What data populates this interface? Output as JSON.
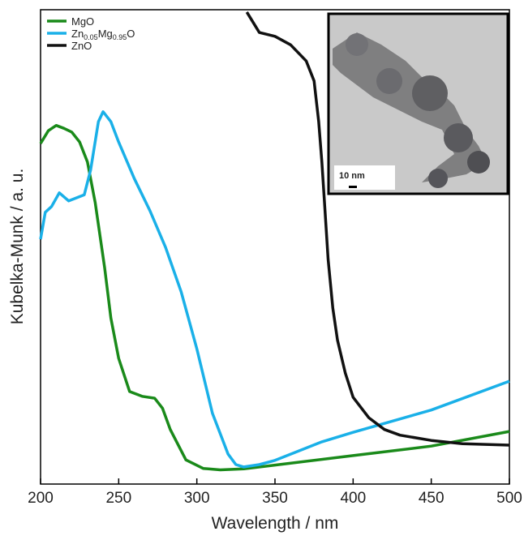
{
  "chart_data": {
    "type": "line",
    "x_label": "Wavelength / nm",
    "y_label": "Kubelka-Munk / a. u.",
    "xlim": [
      200,
      500
    ],
    "ylim": [
      0,
      100
    ],
    "xticks": [
      200,
      250,
      300,
      350,
      400,
      450,
      500
    ],
    "legend": "top-left",
    "series": [
      {
        "name": "MgO",
        "color": "#1a8a1a",
        "x": [
          200,
          205,
          210,
          215,
          220,
          225,
          230,
          235,
          241,
          245,
          250,
          257,
          265,
          273,
          278,
          283,
          293,
          304,
          315,
          330,
          350,
          400,
          450,
          500
        ],
        "values": [
          71.8,
          74.5,
          75.6,
          75.0,
          74.2,
          72.1,
          67.9,
          59.3,
          45.6,
          35.0,
          26.5,
          19.5,
          18.5,
          18.1,
          16.0,
          11.5,
          5.1,
          3.3,
          3.0,
          3.2,
          4.0,
          6.0,
          8.0,
          11.1
        ]
      },
      {
        "name": "Zn0.05Mg0.95O",
        "color": "#1ab0e8",
        "x": [
          200,
          203,
          207,
          212,
          218,
          222,
          228,
          232,
          237,
          240,
          245,
          250,
          260,
          270,
          280,
          290,
          300,
          310,
          320,
          325,
          330,
          340,
          350,
          360,
          380,
          400,
          450,
          500
        ],
        "values": [
          51.6,
          57.3,
          58.5,
          61.4,
          59.7,
          60.2,
          61.0,
          66.2,
          76.4,
          78.5,
          76.4,
          72.1,
          64.4,
          57.6,
          49.9,
          40.5,
          28.5,
          14.9,
          6.3,
          4.1,
          3.6,
          4.1,
          5.0,
          6.3,
          8.9,
          10.9,
          15.6,
          21.7
        ]
      },
      {
        "name": "ZnO",
        "color": "#111111",
        "x": [
          332,
          340,
          350,
          360,
          370,
          375,
          378,
          380,
          382,
          384,
          387,
          390,
          395,
          400,
          410,
          420,
          430,
          450,
          470,
          500
        ],
        "values": [
          99.5,
          95.2,
          94.4,
          92.6,
          89.2,
          85.0,
          76.4,
          67.9,
          57.6,
          47.4,
          37.1,
          30.3,
          23.4,
          18.3,
          14.0,
          11.5,
          10.3,
          9.2,
          8.5,
          8.2
        ]
      }
    ],
    "inset": {
      "scale_label": "10 nm"
    }
  }
}
